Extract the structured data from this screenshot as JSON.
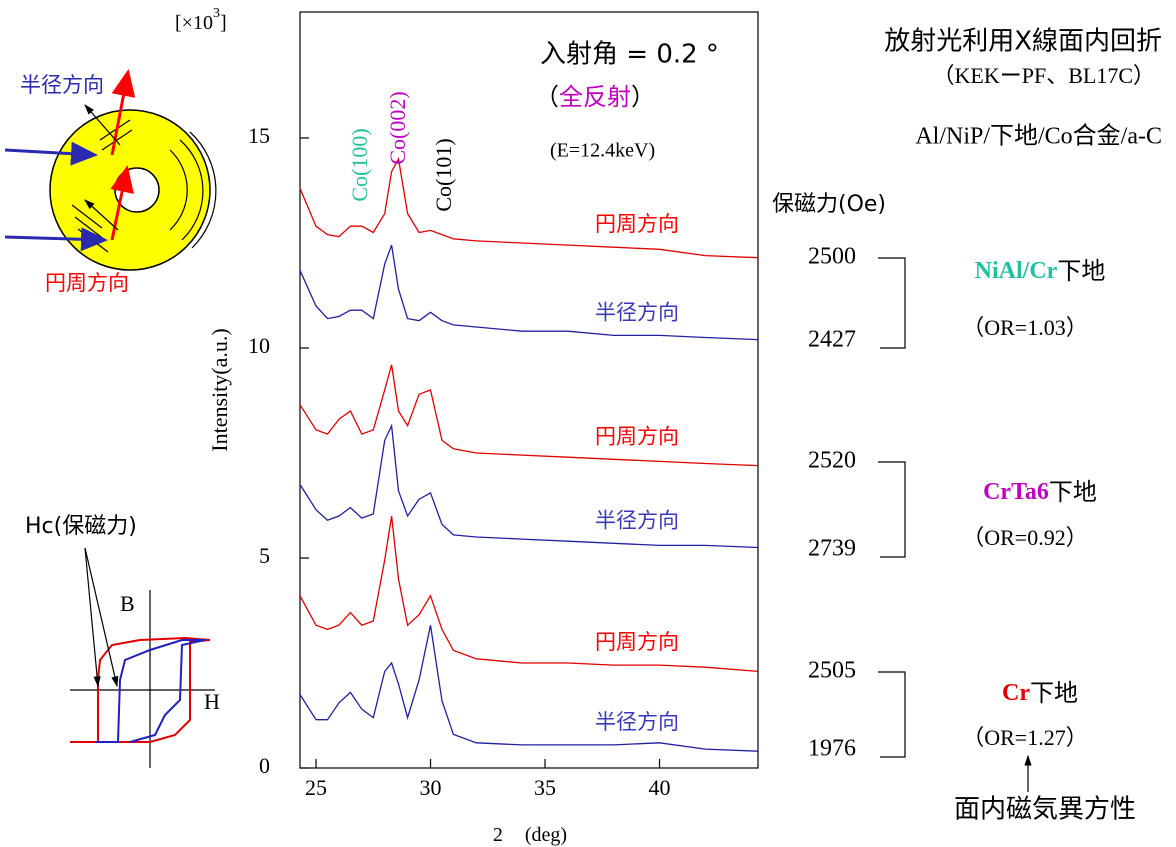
{
  "chart_data": {
    "type": "line",
    "y_axis_label": "Intensity(a.u.)",
    "x_axis_label": {
      "parts": [
        "2",
        "(deg)"
      ]
    },
    "y_multiplier": {
      "parts": [
        "[×10",
        "3",
        "]"
      ]
    },
    "xlim": [
      24.3,
      44.3
    ],
    "ylim": [
      0,
      18
    ],
    "xticks": [
      25,
      30,
      35,
      40
    ],
    "yticks": [
      0,
      5,
      10,
      15
    ],
    "x": [
      24.3,
      25,
      25.5,
      26,
      26.5,
      27,
      27.5,
      28,
      28.3,
      28.6,
      29,
      29.5,
      30,
      30.5,
      31,
      32,
      34,
      36,
      38,
      40,
      42,
      44.3
    ],
    "series": [
      {
        "name": "円周方向",
        "color": "#e00000",
        "values": [
          13.8,
          12.9,
          12.7,
          12.65,
          12.9,
          12.9,
          12.75,
          13.2,
          14.2,
          14.5,
          13.2,
          12.75,
          12.8,
          12.7,
          12.6,
          12.55,
          12.5,
          12.45,
          12.4,
          12.35,
          12.2,
          12.15
        ]
      },
      {
        "name": "半径方向",
        "color": "#2020a0",
        "values": [
          11.85,
          11.0,
          10.7,
          10.75,
          10.9,
          10.9,
          10.7,
          12.0,
          12.45,
          11.4,
          10.7,
          10.65,
          10.85,
          10.65,
          10.55,
          10.5,
          10.4,
          10.4,
          10.3,
          10.3,
          10.25,
          10.2
        ]
      },
      {
        "name": "円周方向",
        "color": "#e00000",
        "values": [
          8.65,
          8.05,
          7.95,
          8.3,
          8.5,
          7.95,
          8.05,
          9.0,
          9.6,
          8.5,
          8.15,
          8.9,
          9.0,
          7.8,
          7.6,
          7.5,
          7.45,
          7.4,
          7.35,
          7.3,
          7.25,
          7.2
        ]
      },
      {
        "name": "半径方向",
        "color": "#2020a0",
        "values": [
          6.75,
          6.15,
          5.9,
          6.0,
          6.2,
          5.95,
          6.05,
          7.8,
          8.15,
          6.6,
          6.0,
          6.4,
          6.55,
          5.8,
          5.55,
          5.5,
          5.45,
          5.4,
          5.35,
          5.3,
          5.3,
          5.25
        ]
      },
      {
        "name": "円周方向",
        "color": "#e00000",
        "values": [
          4.1,
          3.4,
          3.3,
          3.4,
          3.7,
          3.4,
          3.5,
          4.95,
          6.0,
          4.5,
          3.4,
          3.65,
          4.1,
          3.3,
          2.8,
          2.6,
          2.5,
          2.5,
          2.45,
          2.45,
          2.4,
          2.3
        ]
      },
      {
        "name": "半径方向",
        "color": "#2020a0",
        "values": [
          1.75,
          1.15,
          1.15,
          1.55,
          1.8,
          1.4,
          1.2,
          2.3,
          2.5,
          2.0,
          1.2,
          2.1,
          3.4,
          1.6,
          0.8,
          0.6,
          0.55,
          0.55,
          0.55,
          0.6,
          0.45,
          0.4
        ]
      }
    ],
    "peak_labels": [
      {
        "text": "Co(100)",
        "color": "#20c0a0"
      },
      {
        "text": "Co(002)",
        "color": "#c000c0"
      },
      {
        "text": "Co(101)",
        "color": "#000000"
      }
    ],
    "incidence": "入射角 = 0.2 °",
    "reflection": {
      "parts": [
        "（",
        "全反射",
        "）"
      ]
    },
    "energy": "(E=12.4keV)"
  },
  "header": {
    "title": "放射光利用X線面内回折",
    "source": "（KEKーPF、BL17C）",
    "stack": "Al/NiP/下地/Co合金/a-C"
  },
  "coercivity": {
    "title": "保磁力(Oe)",
    "groups": [
      {
        "parts": [
          "NiAl/Cr",
          "下地"
        ],
        "color": "#20c0a0",
        "ratio": "（OR=1.03）",
        "values": [
          2500,
          2427
        ]
      },
      {
        "parts": [
          "CrTa6",
          "下地"
        ],
        "color": "#c000c0",
        "ratio": "（OR=0.92）",
        "values": [
          2520,
          2739
        ]
      },
      {
        "parts": [
          "Cr",
          "下地"
        ],
        "color": "#e00000",
        "ratio": "（OR=1.27）",
        "values": [
          2505,
          1976
        ]
      }
    ],
    "note": "面内磁気異方性"
  },
  "disk_diagram": {
    "radial": "半径方向",
    "circumferential": "円周方向"
  },
  "hysteresis_diagram": {
    "coercivity": "Hc(保磁力)",
    "b_axis": "B",
    "h_axis": "H"
  }
}
